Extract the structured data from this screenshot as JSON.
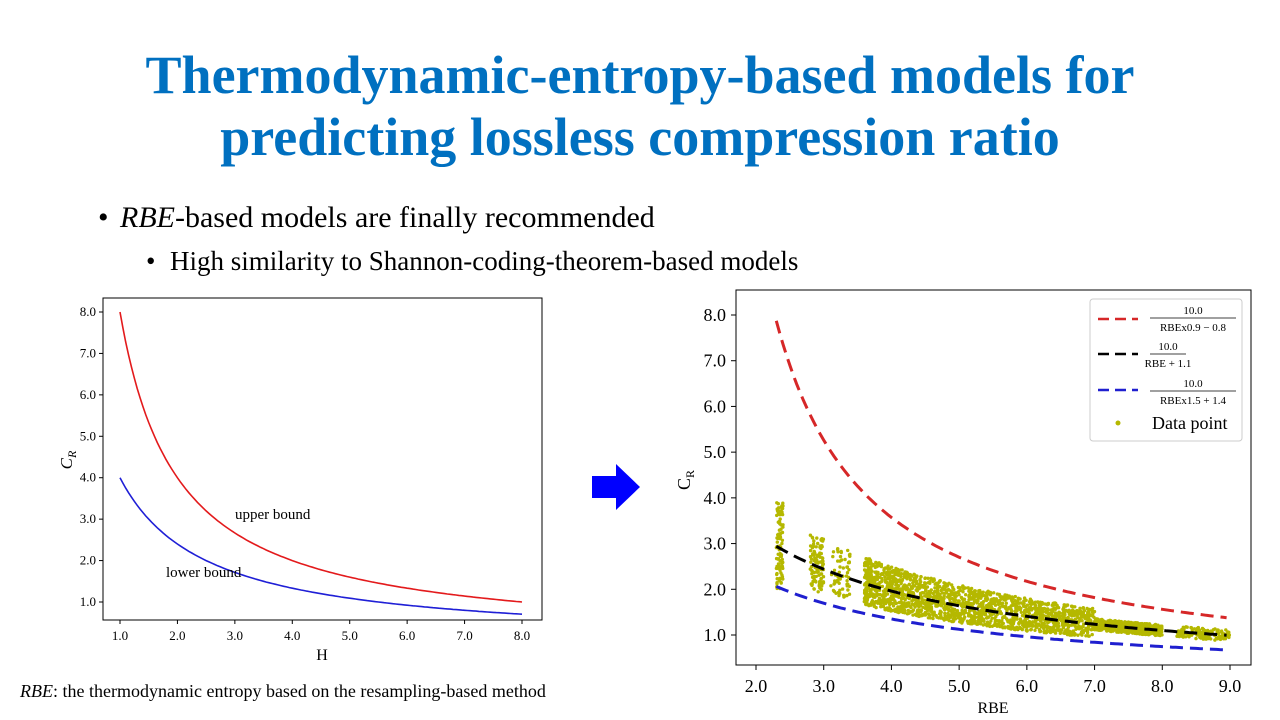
{
  "slide": {
    "title_line1": "Thermodynamic-entropy-based models for",
    "title_line2": "predicting lossless compression ratio",
    "bullet1_emph": "RBE",
    "bullet1_rest": "-based models are finally recommended",
    "bullet2": "High similarity to Shannon-coding-theorem-based models",
    "footnote_emph": "RBE",
    "footnote_rest": ": the thermodynamic  entropy  based on the resampling-based  method",
    "accent_color": "#0070c0",
    "arrow_icon": "right-arrow-icon"
  },
  "chart_data": [
    {
      "type": "line",
      "xlabel": "H",
      "ylabel_main": "C",
      "ylabel_sub": "R",
      "xlim": [
        1.0,
        8.0
      ],
      "ylim": [
        1.0,
        8.0
      ],
      "xticks": [
        "1.0",
        "2.0",
        "3.0",
        "4.0",
        "5.0",
        "6.0",
        "7.0",
        "8.0"
      ],
      "yticks": [
        "1.0",
        "2.0",
        "3.0",
        "4.0",
        "5.0",
        "6.0",
        "7.0",
        "8.0"
      ],
      "series": [
        {
          "name": "upper bound",
          "color": "#e31a1c",
          "formula": "8/x"
        },
        {
          "name": "lower bound",
          "color": "#1f1fd6",
          "formula": "4/(x+0.5)*1.5"
        }
      ],
      "annotations": [
        "upper bound",
        "lower bound"
      ]
    },
    {
      "type": "scatter",
      "xlabel": "RBE",
      "ylabel_main": "C",
      "ylabel_sub": "R",
      "xlim": [
        2.0,
        9.0
      ],
      "ylim": [
        1.0,
        8.0
      ],
      "xticks": [
        "2.0",
        "3.0",
        "4.0",
        "5.0",
        "6.0",
        "7.0",
        "8.0",
        "9.0"
      ],
      "yticks": [
        "1.0",
        "2.0",
        "3.0",
        "4.0",
        "5.0",
        "6.0",
        "7.0",
        "8.0"
      ],
      "series": [
        {
          "name_num": "10.0",
          "name_den": "RBEx0.9 − 0.8",
          "color": "#d62728",
          "style": "dashed",
          "a": 0.9,
          "b": -0.8
        },
        {
          "name_num": "10.0",
          "name_den": "RBE + 1.1",
          "color": "#000000",
          "style": "dashed",
          "a": 1.0,
          "b": 1.1
        },
        {
          "name_num": "10.0",
          "name_den": "RBEx1.5 + 1.4",
          "color": "#1f1fcf",
          "style": "dashed",
          "a": 1.5,
          "b": 1.4
        }
      ],
      "points": {
        "name": "Data point",
        "color": "#b5b800",
        "x_range": [
          2.3,
          9.0
        ],
        "y_range": [
          1.0,
          4.0
        ]
      },
      "legend_position": "top-right"
    }
  ]
}
